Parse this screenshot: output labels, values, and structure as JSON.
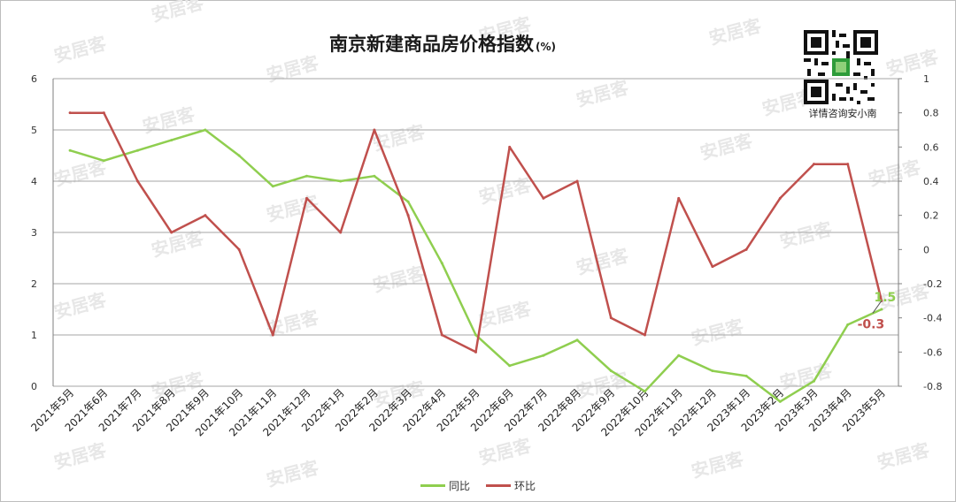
{
  "watermark": "安居客",
  "title": "南京新建商品房价格指数",
  "title_unit": "(%)",
  "qr_caption": "详情咨询安小南",
  "colors": {
    "yoy": "#8fce4f",
    "mom": "#c0504d",
    "grid": "#a6a6a6",
    "axis": "#7f7f7f"
  },
  "chart_data": {
    "type": "line",
    "categories": [
      "2021年5月",
      "2021年6月",
      "2021年7月",
      "2021年8月",
      "2021年9月",
      "2021年10月",
      "2021年11月",
      "2021年12月",
      "2022年1月",
      "2022年2月",
      "2022年3月",
      "2022年4月",
      "2022年5月",
      "2022年6月",
      "2022年7月",
      "2022年8月",
      "2022年9月",
      "2022年10月",
      "2022年11月",
      "2022年12月",
      "2023年1月",
      "2023年2月",
      "2023年3月",
      "2023年4月",
      "2023年5月"
    ],
    "series": [
      {
        "name": "同比",
        "axis": "left",
        "values": [
          4.6,
          4.4,
          4.6,
          4.8,
          5.0,
          4.5,
          3.9,
          4.1,
          4.0,
          4.1,
          3.6,
          2.4,
          1.0,
          0.4,
          0.6,
          0.9,
          0.3,
          -0.1,
          0.6,
          0.3,
          0.2,
          -0.3,
          0.1,
          1.2,
          1.5
        ]
      },
      {
        "name": "环比",
        "axis": "right",
        "values": [
          0.8,
          0.8,
          0.4,
          0.1,
          0.2,
          0.0,
          -0.5,
          0.3,
          0.1,
          0.7,
          0.2,
          -0.5,
          -0.6,
          0.6,
          0.3,
          0.4,
          -0.4,
          -0.5,
          0.3,
          -0.1,
          0.0,
          0.3,
          0.5,
          0.5,
          -0.3
        ]
      }
    ],
    "left_axis": {
      "ylim": [
        0,
        6
      ],
      "ticks": [
        "0",
        "1",
        "2",
        "3",
        "4",
        "5",
        "6"
      ]
    },
    "right_axis": {
      "ylim": [
        -0.8,
        1
      ],
      "ticks": [
        "-0.8",
        "-0.6",
        "-0.4",
        "-0.2",
        "0",
        "0.2",
        "0.4",
        "0.6",
        "0.8",
        "1"
      ]
    },
    "annotations": [
      {
        "series": "同比",
        "text": "1.5"
      },
      {
        "series": "环比",
        "text": "-0.3"
      }
    ],
    "grid": true,
    "legend_position": "bottom"
  }
}
